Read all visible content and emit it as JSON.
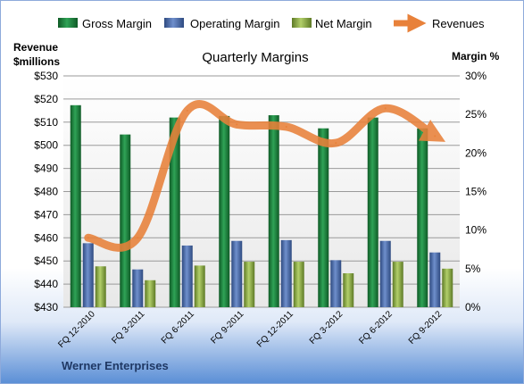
{
  "chart_data": {
    "type": "bar",
    "title": "Quarterly Margins",
    "y_left_label_line1": "Revenue",
    "y_left_label_line2": "$millions",
    "y_right_label": "Margin %",
    "footer": "Werner Enterprises",
    "categories": [
      "FQ 12-2010",
      "FQ 3-2011",
      "FQ 6-2011",
      "FQ 9-2011",
      "FQ 12-2011",
      "FQ 3-2012",
      "FQ 6-2012",
      "FQ 9-2012"
    ],
    "series": [
      {
        "name": "Gross Margin",
        "axis": "right",
        "kind": "bar",
        "values": [
          26.2,
          22.4,
          24.6,
          24.8,
          24.9,
          23.2,
          24.6,
          23.2
        ],
        "color": "#1e7a3c"
      },
      {
        "name": "Operating Margin",
        "axis": "right",
        "kind": "bar",
        "values": [
          8.3,
          4.9,
          8.0,
          8.6,
          8.7,
          6.1,
          8.6,
          7.1
        ],
        "color": "#4f6ea8"
      },
      {
        "name": "Net Margin",
        "axis": "right",
        "kind": "bar",
        "values": [
          5.3,
          3.5,
          5.4,
          5.9,
          5.9,
          4.4,
          5.9,
          5.0
        ],
        "color": "#8fb04a"
      },
      {
        "name": "Revenues",
        "axis": "left",
        "kind": "line",
        "values": [
          460,
          460,
          515,
          509,
          508,
          501,
          516,
          504
        ],
        "color": "#e8813a"
      }
    ],
    "y_left": {
      "min": 430,
      "max": 530,
      "step": 10,
      "prefix": "$"
    },
    "y_right": {
      "min": 0,
      "max": 30,
      "step": 5,
      "suffix": "%"
    },
    "grid": true,
    "legend_position": "top"
  }
}
